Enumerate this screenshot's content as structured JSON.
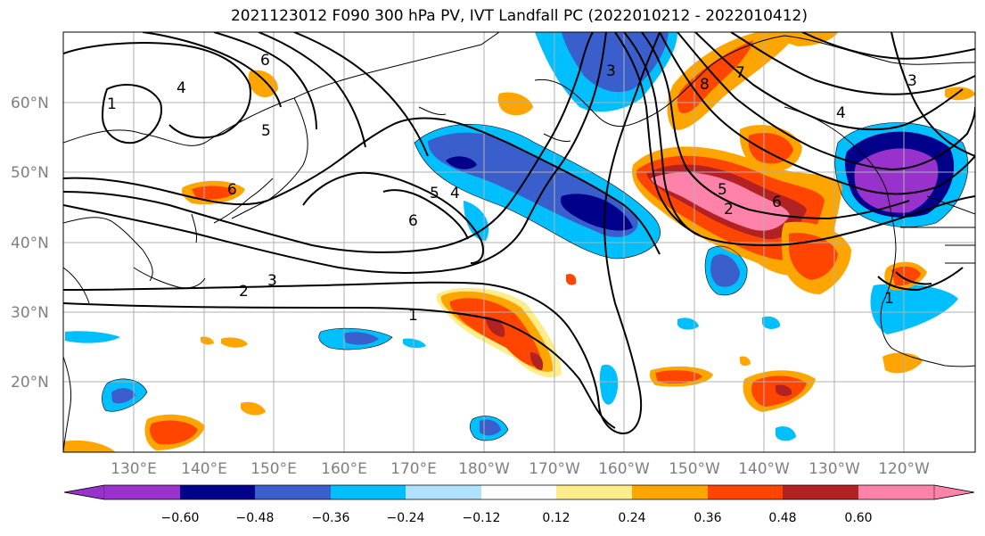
{
  "title": "2021123012 F090 300 hPa PV, IVT Landfall PC (2022010212 - 2022010412)",
  "lat_labels": [
    "60°N",
    "50°N",
    "40°N",
    "30°N",
    "20°N"
  ],
  "lon_labels": [
    "130°E",
    "140°E",
    "150°E",
    "160°E",
    "170°E",
    "180°W",
    "170°W",
    "160°W",
    "150°W",
    "140°W",
    "130°W",
    "120°W"
  ],
  "colorbar": {
    "ticks": [
      "−0.60",
      "−0.48",
      "−0.36",
      "−0.24",
      "−0.12",
      "0.12",
      "0.24",
      "0.36",
      "0.48",
      "0.60"
    ],
    "colors": [
      "#9932cc",
      "#00008b",
      "#3a5fcd",
      "#00bfff",
      "#b0e2ff",
      "#ffffff",
      "#ffec8b",
      "#ffa500",
      "#ff4500",
      "#b22222",
      "#ff82ab"
    ]
  },
  "contour_labels": [
    "1",
    "2",
    "3",
    "4",
    "5",
    "6",
    "7",
    "8"
  ],
  "colors": {
    "grid": "#b0b0b0",
    "contour": "#000000",
    "coast": "#000000"
  }
}
